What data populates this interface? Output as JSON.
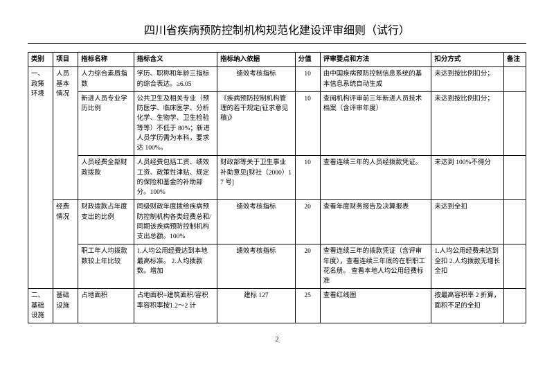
{
  "page": {
    "title": "四川省疾病预防控制机构规范化建设评审细则（试行）",
    "number": "2"
  },
  "headers": {
    "c1": "类别",
    "c2": "项目",
    "c3": "指标名称",
    "c4": "指标含义",
    "c5": "指标纳入依据",
    "c6": "分值",
    "c7": "评审要点和方法",
    "c8": "扣分方式",
    "c9": "备注"
  },
  "rows": {
    "r1": {
      "cat": "一、政策环境",
      "proj1": "人员基本情况",
      "name": "人力综合素质指数",
      "meaning": "学历、职称和年龄三指标的综合表达。≥6.05",
      "basis": "绩效考核指标",
      "score": "10",
      "method": "由中国疾病预防控制信息系统的基本信息系统自动生成",
      "deduct": "未达到按比例扣分；"
    },
    "r2": {
      "name": "新进人员专业学历比例",
      "meaning": "公共卫生及相关专业（预防医学、临床医学、分析化学、生物学、卫生检验等等）不低于 80%；新进人员学历需为本科，要求达 100%。",
      "basis": "《疾病预防控制机构管理的若干规定(征求意见稿)》",
      "score": "10",
      "method": "查阅机构评审前三年新进人员技术档案（含评审年度）",
      "deduct": "未达到按比例扣分；"
    },
    "r3": {
      "name": "人员经费全部财政拨款",
      "meaning": "人员经费包括工资、绩效工资、政策性津贴、规定的保险和基金的补助部分。100%",
      "basis": "财政部等关于卫生事业补助意见[财社（2000）17 号]",
      "score": "10",
      "method": "查看连续三年的人员经拨款凭证。",
      "deduct": "未达到 100%不得分"
    },
    "r4": {
      "proj2": "经费情况",
      "name": "财政拨款占年度支出的比例",
      "meaning": "同级财政年度拨给疾病预防控制机构各类经费总和/同期该疾病预防控制机构支出总额。100%",
      "basis": "绩效考核指标",
      "score": "20",
      "method": "查看年度财务报告及决算报表",
      "deduct": "未达到全扣"
    },
    "r5": {
      "name": "职工年人均拨款数较上年比较",
      "meaning": "1.人均公用经费达到本地最高标准。\n2.人均拨款数。增加",
      "basis": "绩效考核指标",
      "score": "20",
      "method": "查看连续三年的拨款凭证（含评审年度），查看连续三年底的在职职工花名册。\n查看本地人均公用经费标准",
      "deduct": "1.人均公用经费未达到全扣\n2.人均拨款无增长全扣"
    },
    "r6": {
      "cat": "二、基础设施",
      "proj": "基础设施",
      "name": "占地面积",
      "meaning": "占地面积=建筑面积/容积率容积率按1.2～2 计",
      "basis": "建标 127",
      "score": "25",
      "method": "查看红线图",
      "deduct": "按最高容积率 2 折算，面积不足的全扣"
    }
  }
}
